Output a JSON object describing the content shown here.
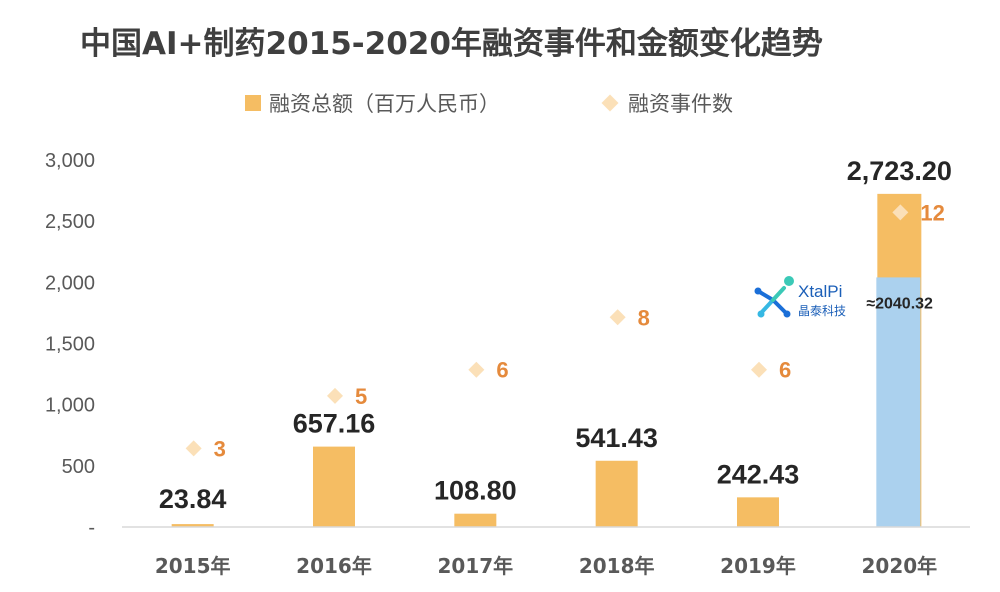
{
  "title": "中国AI+制药2015-2020年融资事件和金额变化趋势",
  "legend": [
    {
      "label": "融资总额（百万人民币）",
      "marker": "bar",
      "color": "#F5BD63"
    },
    {
      "label": "融资事件数",
      "marker": "diamond",
      "color": "#FBE0B8"
    }
  ],
  "chart_data": {
    "type": "bar",
    "categories": [
      "2015年",
      "2016年",
      "2017年",
      "2018年",
      "2019年",
      "2020年"
    ],
    "series": [
      {
        "name": "融资总额（百万人民币）",
        "type": "bar",
        "values": [
          23.84,
          657.16,
          108.8,
          541.43,
          242.43,
          2723.2
        ],
        "labels": [
          "23.84",
          "657.16",
          "108.80",
          "541.43",
          "242.43",
          "2,723.20"
        ]
      },
      {
        "name": "融资事件数",
        "type": "scatter",
        "values": [
          3,
          5,
          6,
          8,
          6,
          12
        ],
        "labels": [
          "3",
          "5",
          "6",
          "8",
          "6",
          "12"
        ]
      }
    ],
    "yticks": [
      0,
      500,
      1000,
      1500,
      2000,
      2500,
      3000
    ],
    "ytick_labels": [
      "-",
      "500",
      "1,000",
      "1,500",
      "2,000",
      "2,500",
      "3,000"
    ],
    "ylim": [
      0,
      3000
    ],
    "count_scale_ylim": [
      0,
      14
    ],
    "grid": false,
    "legend_position": "top",
    "highlight": {
      "category": "2020年",
      "value": 2040.32,
      "label": "≈2040.32",
      "color": "#ABD1EE"
    },
    "colors": {
      "bar": "#F5BD63",
      "marker": "#FBE0B8",
      "count_label": "#E58A3C",
      "value_label": "#262626",
      "axis": "#D9D9D9",
      "tick": "#595959"
    }
  },
  "logo": {
    "name": "XtalPi",
    "subtitle": "晶泰科技"
  }
}
